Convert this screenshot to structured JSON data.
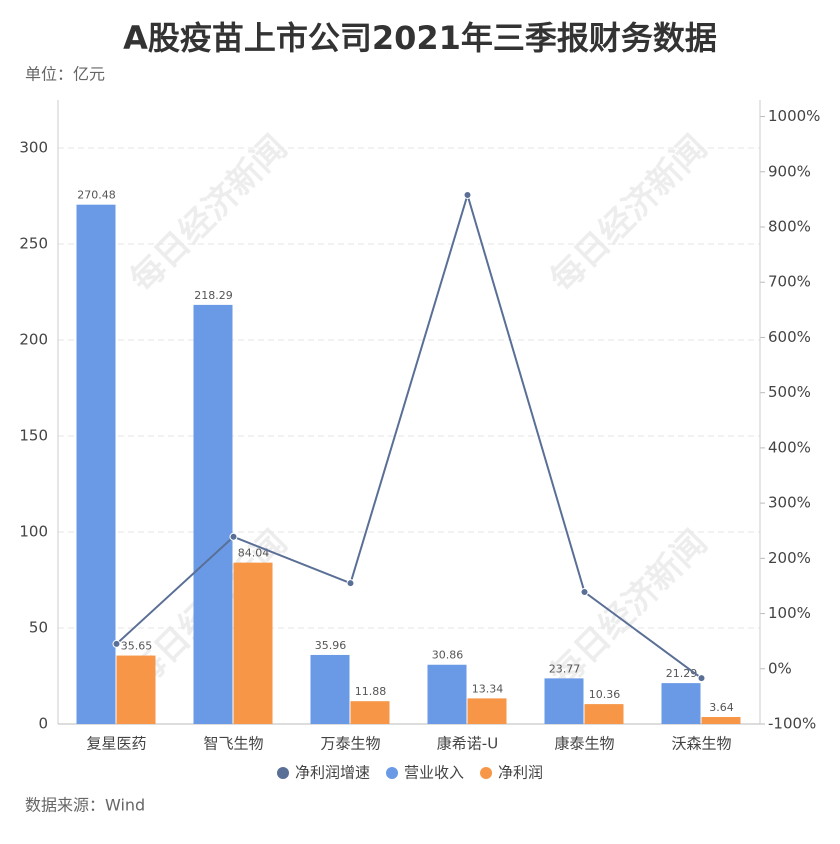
{
  "chart_data": {
    "type": "bar_line",
    "title": "A股疫苗上市公司2021年三季报财务数据",
    "unit_label": "单位：亿元",
    "source": "数据来源：Wind",
    "watermark": "每日经济新闻",
    "categories": [
      "复星医药",
      "智飞生物",
      "万泰生物",
      "康希诺-U",
      "康泰生物",
      "沃森生物"
    ],
    "series": [
      {
        "name": "净利润增速",
        "color": "#5a6f96",
        "type": "line",
        "axis": "y2",
        "values": [
          45,
          239,
          155,
          858,
          139,
          -17
        ]
      },
      {
        "name": "营业收入",
        "color": "#6a9ae6",
        "type": "bar",
        "values": [
          270.48,
          218.29,
          35.96,
          30.86,
          23.77,
          21.29
        ]
      },
      {
        "name": "净利润",
        "color": "#f79646",
        "type": "bar",
        "values": [
          35.65,
          84.04,
          11.88,
          13.34,
          10.36,
          3.64
        ]
      }
    ],
    "ylim": [
      0,
      325
    ],
    "yticks": [
      0,
      50,
      100,
      150,
      200,
      250,
      300
    ],
    "y2lim": [
      -100,
      1030
    ],
    "y2ticks": [
      {
        "value": -100,
        "label": "-100%"
      },
      {
        "value": 0,
        "label": "0%"
      },
      {
        "value": 100,
        "label": "100%"
      },
      {
        "value": 200,
        "label": "200%"
      },
      {
        "value": 300,
        "label": "300%"
      },
      {
        "value": 400,
        "label": "400%"
      },
      {
        "value": 500,
        "label": "500%"
      },
      {
        "value": 600,
        "label": "600%"
      },
      {
        "value": 700,
        "label": "700%"
      },
      {
        "value": 800,
        "label": "800%"
      },
      {
        "value": 900,
        "label": "900%"
      },
      {
        "value": 1000,
        "label": "1000%"
      }
    ],
    "grid": true
  }
}
